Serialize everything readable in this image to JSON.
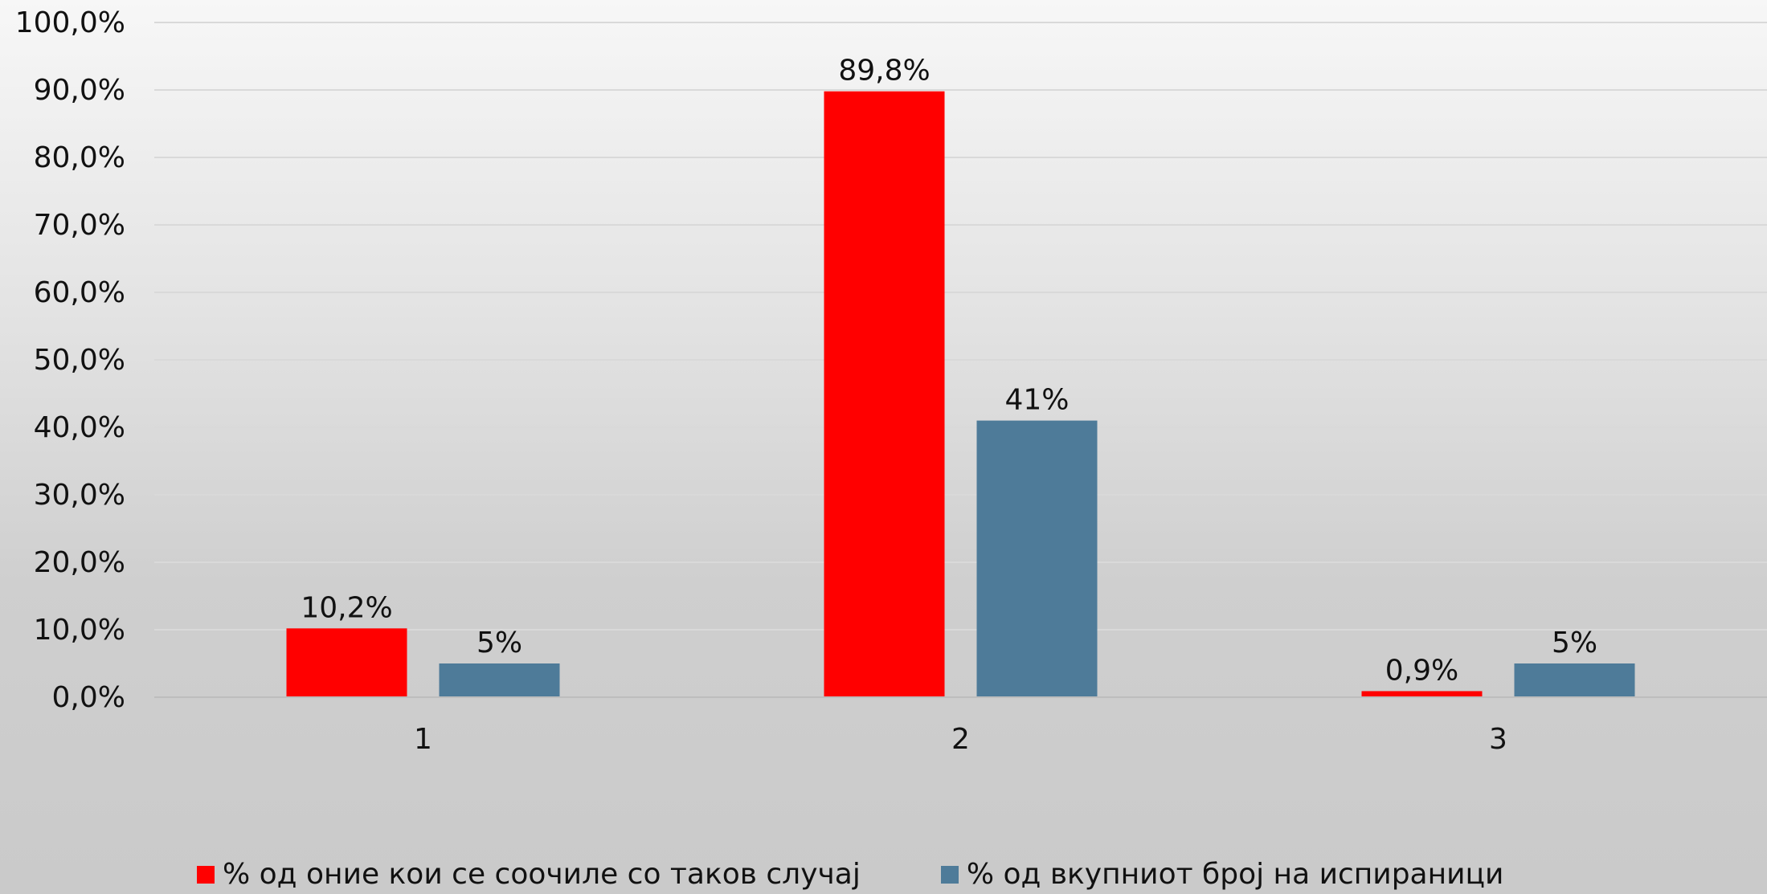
{
  "chart_data": {
    "type": "bar",
    "categories": [
      "1",
      "2",
      "3"
    ],
    "series": [
      {
        "name": "% од оние кои се соочиле со таков случај",
        "values": [
          10.2,
          89.8,
          0.9
        ],
        "labels": [
          "10,2%",
          "89,8%",
          "0,9%"
        ],
        "color": "#ff0000"
      },
      {
        "name": "% од вкупниот број на испираници",
        "values": [
          5,
          41,
          5
        ],
        "labels": [
          "5%",
          "41%",
          "5%"
        ],
        "color": "#4e7b99"
      }
    ],
    "ylim": [
      0,
      100
    ],
    "yticks": [
      "0,0%",
      "10,0%",
      "20,0%",
      "30,0%",
      "40,0%",
      "50,0%",
      "60,0%",
      "70,0%",
      "80,0%",
      "90,0%",
      "100,0%"
    ],
    "grid": true,
    "legend_position": "bottom",
    "title": "",
    "xlabel": "",
    "ylabel": ""
  }
}
